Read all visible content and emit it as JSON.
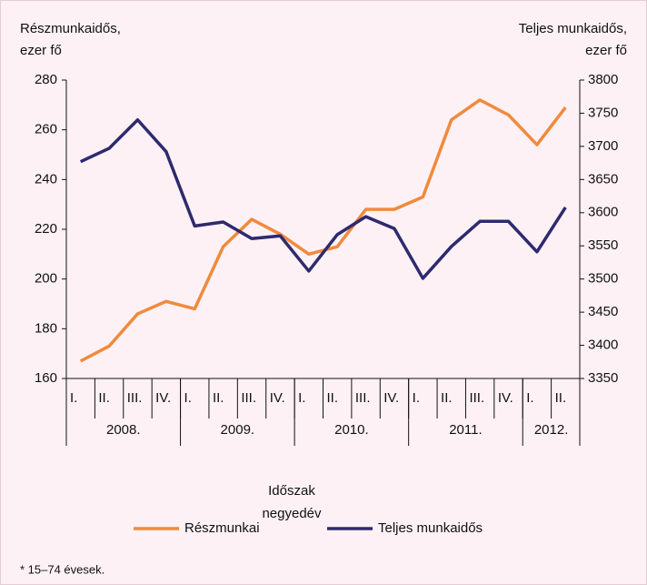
{
  "chart_data": {
    "type": "line",
    "y_label": [
      "Részmunkaidős,",
      "ezer fő"
    ],
    "y2_label": [
      "Teljes munkaidős,",
      "ezer fő"
    ],
    "x_label": [
      "Időszak",
      "negyedév"
    ],
    "groups": [
      {
        "label": "2008.",
        "categories": [
          "I.",
          "II.",
          "III.",
          "IV."
        ]
      },
      {
        "label": "2009.",
        "categories": [
          "I.",
          "II.",
          "III.",
          "IV."
        ]
      },
      {
        "label": "2010.",
        "categories": [
          "I.",
          "II.",
          "III.",
          "IV."
        ]
      },
      {
        "label": "2011.",
        "categories": [
          "I.",
          "II.",
          "III.",
          "IV."
        ]
      },
      {
        "label": "2012.",
        "categories": [
          "I.",
          "II."
        ]
      }
    ],
    "series": [
      {
        "name": "Részmunkaidős",
        "color": "#f08a3c",
        "axis": "y",
        "values": [
          167,
          173,
          186,
          191,
          188,
          213,
          224,
          218,
          210,
          213,
          228,
          228,
          233,
          264,
          272,
          266,
          254,
          269
        ]
      },
      {
        "name": "Teljes munkaidős",
        "color": "#2e2a6e",
        "axis": "y2",
        "values": [
          3677,
          3697,
          3740,
          3692,
          3580,
          3586,
          3561,
          3565,
          3512,
          3567,
          3594,
          3576,
          3501,
          3549,
          3587,
          3587,
          3541,
          3608
        ]
      }
    ],
    "ylim": [
      160,
      280
    ],
    "yticks": [
      160,
      180,
      200,
      220,
      240,
      260,
      280
    ],
    "y2lim": [
      3350,
      3800
    ],
    "y2ticks": [
      3350,
      3400,
      3450,
      3500,
      3550,
      3600,
      3650,
      3700,
      3750,
      3800
    ],
    "footnote": "* 15–74 évesek."
  }
}
